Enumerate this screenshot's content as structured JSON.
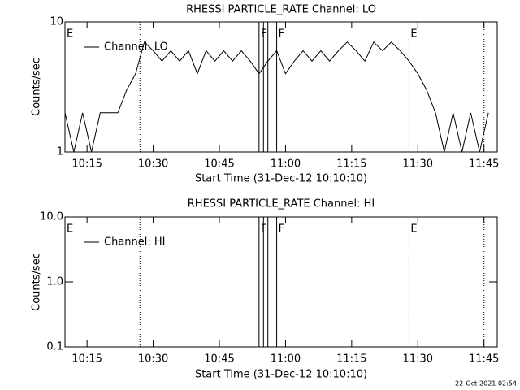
{
  "footer": "22-Oct-2021 02:54",
  "chart_data": [
    {
      "type": "line",
      "title": "RHESSI PARTICLE_RATE Channel: LO",
      "xlabel": "Start Time (31-Dec-12 10:10:10)",
      "ylabel": "Counts/sec",
      "log_y": true,
      "ylim": [
        1,
        10
      ],
      "yticks": [
        1,
        10
      ],
      "xlim": [
        "10:10",
        "11:48"
      ],
      "xticks": [
        "10:15",
        "10:30",
        "10:45",
        "11:00",
        "11:15",
        "11:30",
        "11:45"
      ],
      "legend": "upper left",
      "series": [
        {
          "name": "Channel: LO",
          "color": "#000000",
          "x": [
            "10:10",
            "10:12",
            "10:14",
            "10:16",
            "10:18",
            "10:20",
            "10:22",
            "10:24",
            "10:26",
            "10:28",
            "10:30",
            "10:32",
            "10:34",
            "10:36",
            "10:38",
            "10:40",
            "10:42",
            "10:44",
            "10:46",
            "10:48",
            "10:50",
            "10:52",
            "10:54",
            "10:56",
            "10:58",
            "11:00",
            "11:02",
            "11:04",
            "11:06",
            "11:08",
            "11:10",
            "11:12",
            "11:14",
            "11:16",
            "11:18",
            "11:20",
            "11:22",
            "11:24",
            "11:26",
            "11:28",
            "11:30",
            "11:32",
            "11:34",
            "11:36",
            "11:38",
            "11:40",
            "11:42",
            "11:44",
            "11:46"
          ],
          "values": [
            2,
            1,
            2,
            1,
            2,
            2,
            2,
            3,
            4,
            7,
            6,
            5,
            6,
            5,
            6,
            4,
            6,
            5,
            6,
            5,
            6,
            5,
            4,
            5,
            6,
            4,
            5,
            6,
            5,
            6,
            5,
            6,
            7,
            6,
            5,
            7,
            6,
            7,
            6,
            5,
            4,
            3,
            2,
            1,
            2,
            1,
            2,
            1,
            2
          ]
        }
      ],
      "vlines": [
        {
          "x": "10:27",
          "style": "dotted"
        },
        {
          "x": "10:54",
          "style": "solid"
        },
        {
          "x": "10:55",
          "style": "solid"
        },
        {
          "x": "10:56",
          "style": "solid"
        },
        {
          "x": "10:58",
          "style": "solid"
        },
        {
          "x": "11:28",
          "style": "dotted"
        },
        {
          "x": "11:45",
          "style": "dotted"
        }
      ],
      "annotations": [
        {
          "text": "E",
          "x": "10:10"
        },
        {
          "text": "F",
          "x": "10:54"
        },
        {
          "text": "F",
          "x": "10:58"
        },
        {
          "text": "E",
          "x": "11:28"
        }
      ]
    },
    {
      "type": "line",
      "title": "RHESSI PARTICLE_RATE Channel: HI",
      "xlabel": "Start Time (31-Dec-12 10:10:10)",
      "ylabel": "Counts/sec",
      "log_y": true,
      "ylim": [
        0.1,
        10
      ],
      "yticks": [
        0.1,
        {
          "value": 1,
          "label": "1.0"
        },
        {
          "value": 10,
          "label": "10.0"
        }
      ],
      "xlim": [
        "10:10",
        "11:48"
      ],
      "xticks": [
        "10:15",
        "10:30",
        "10:45",
        "11:00",
        "11:15",
        "11:30",
        "11:45"
      ],
      "legend": "upper left",
      "series": [
        {
          "name": "Channel: HI",
          "color": "#000000",
          "x": [],
          "values": []
        }
      ],
      "vlines": [
        {
          "x": "10:27",
          "style": "dotted"
        },
        {
          "x": "10:54",
          "style": "solid"
        },
        {
          "x": "10:55",
          "style": "solid"
        },
        {
          "x": "10:56",
          "style": "solid"
        },
        {
          "x": "10:58",
          "style": "solid"
        },
        {
          "x": "11:28",
          "style": "dotted"
        },
        {
          "x": "11:45",
          "style": "dotted"
        }
      ],
      "annotations": [
        {
          "text": "E",
          "x": "10:10"
        },
        {
          "text": "F",
          "x": "10:54"
        },
        {
          "text": "F",
          "x": "10:58"
        },
        {
          "text": "E",
          "x": "11:28"
        }
      ]
    }
  ]
}
